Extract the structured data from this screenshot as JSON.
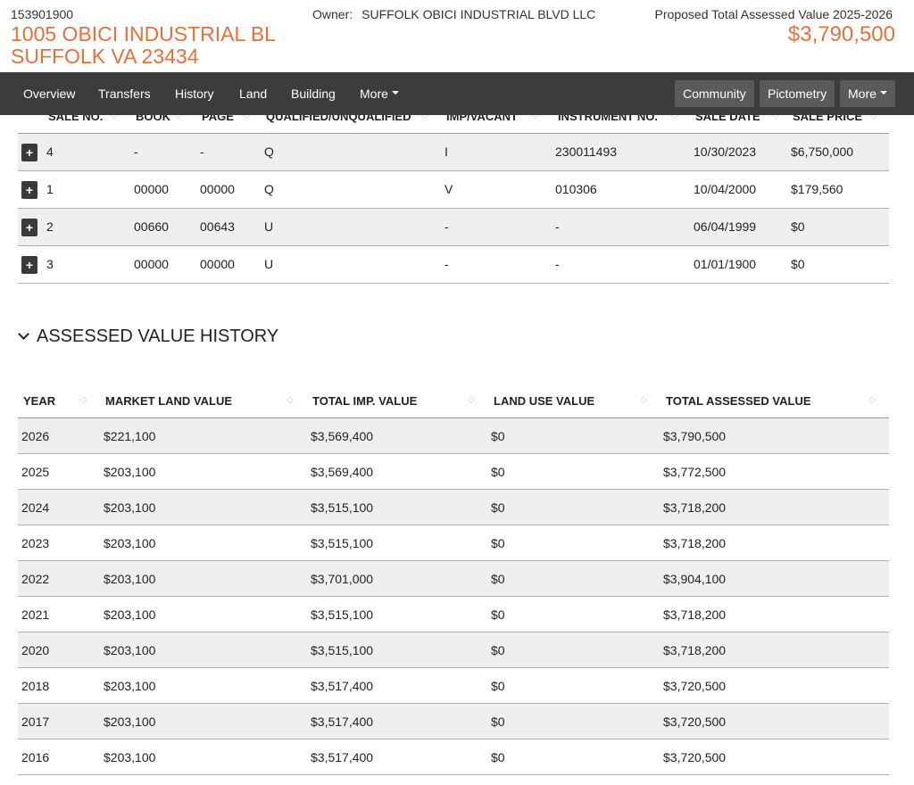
{
  "header": {
    "parcel_id": "153901900",
    "address_line1": "1005 OBICI INDUSTRIAL BL",
    "address_line2": "SUFFOLK VA 23434",
    "owner_label": "Owner:",
    "owner_name": "SUFFOLK OBICI INDUSTRIAL BLVD LLC",
    "proposed_label": "Proposed Total Assessed Value 2025-2026",
    "proposed_value": "$3,790,500"
  },
  "nav": {
    "items": [
      "Overview",
      "Transfers",
      "History",
      "Land",
      "Building",
      "More"
    ],
    "buttons": [
      "Community",
      "Pictometry",
      "More"
    ]
  },
  "sales_table": {
    "columns": [
      "SALE NO.",
      "BOOK",
      "PAGE",
      "QUALIFIED/UNQUALIFIED",
      "IMP/VACANT",
      "INSTRUMENT NO.",
      "SALE DATE",
      "SALE PRICE"
    ],
    "rows": [
      [
        "4",
        "-",
        "-",
        "Q",
        "I",
        "230011493",
        "10/30/2023",
        "$6,750,000"
      ],
      [
        "1",
        "00000",
        "00000",
        "Q",
        "V",
        "010306",
        "10/04/2000",
        "$179,560"
      ],
      [
        "2",
        "00660",
        "00643",
        "U",
        "-",
        "-",
        "06/04/1999",
        "$0"
      ],
      [
        "3",
        "00000",
        "00000",
        "U",
        "-",
        "-",
        "01/01/1900",
        "$0"
      ]
    ],
    "expand_glyph": "+"
  },
  "assessed_history": {
    "title": "ASSESSED VALUE HISTORY",
    "columns": [
      "YEAR",
      "MARKET LAND VALUE",
      "TOTAL IMP. VALUE",
      "LAND USE VALUE",
      "TOTAL ASSESSED VALUE"
    ],
    "rows": [
      [
        "2026",
        "$221,100",
        "$3,569,400",
        "$0",
        "$3,790,500"
      ],
      [
        "2025",
        "$203,100",
        "$3,569,400",
        "$0",
        "$3,772,500"
      ],
      [
        "2024",
        "$203,100",
        "$3,515,100",
        "$0",
        "$3,718,200"
      ],
      [
        "2023",
        "$203,100",
        "$3,515,100",
        "$0",
        "$3,718,200"
      ],
      [
        "2022",
        "$203,100",
        "$3,701,000",
        "$0",
        "$3,904,100"
      ],
      [
        "2021",
        "$203,100",
        "$3,515,100",
        "$0",
        "$3,718,200"
      ],
      [
        "2020",
        "$203,100",
        "$3,515,100",
        "$0",
        "$3,718,200"
      ],
      [
        "2018",
        "$203,100",
        "$3,517,400",
        "$0",
        "$3,720,500"
      ],
      [
        "2017",
        "$203,100",
        "$3,517,400",
        "$0",
        "$3,720,500"
      ],
      [
        "2016",
        "$203,100",
        "$3,517,400",
        "$0",
        "$3,720,500"
      ]
    ]
  },
  "icons": {
    "sort": "sort-diamond-icon",
    "chevron": "chevron-down-icon",
    "caret": "caret-down-icon",
    "expand": "plus-icon"
  },
  "colors": {
    "accent": "#e8703a",
    "navbar": "#3c3c3c",
    "nav_button": "#5a5a5a",
    "row_shade": "#efefef"
  }
}
